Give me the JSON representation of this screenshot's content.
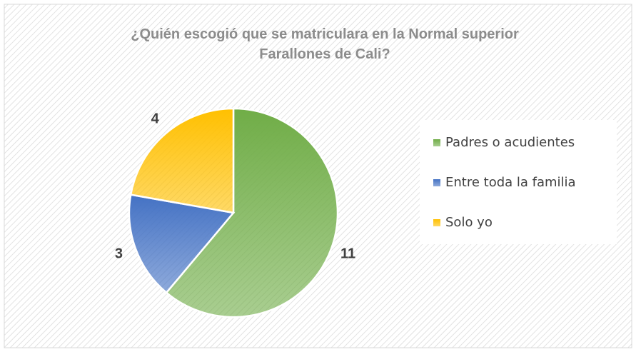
{
  "chart_data": {
    "type": "pie",
    "title": "¿Quién escogió que se matriculara en la Normal superior Farallones de Cali?",
    "categories": [
      "Padres o acudientes",
      "Entre toda la familia",
      "Solo yo"
    ],
    "values": [
      11,
      3,
      4
    ],
    "colors": [
      "#70ad47",
      "#4472c4",
      "#ffc000"
    ],
    "legend": "right"
  }
}
